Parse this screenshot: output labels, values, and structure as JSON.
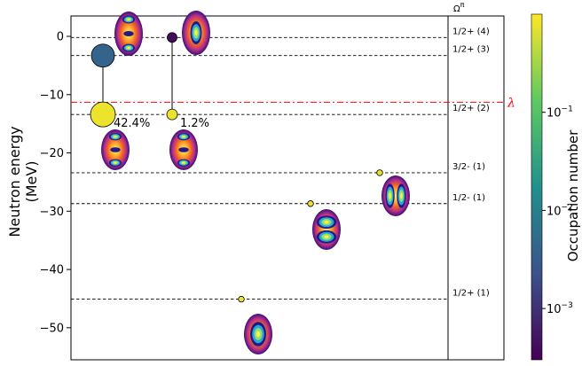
{
  "chart_data": {
    "type": "scatter",
    "ylabel_lines": [
      "Neutron energy",
      "(MeV)"
    ],
    "ylim": [
      -55.5,
      3.5
    ],
    "y_ticks": [
      0,
      -10,
      -20,
      -30,
      -40,
      -50
    ],
    "x_ticks_shown": false,
    "levels": [
      {
        "label": "1/2+ (4)",
        "energy": -0.2
      },
      {
        "label": "1/2+ (3)",
        "energy": -3.3
      },
      {
        "label": "1/2+ (2)",
        "energy": -13.4
      },
      {
        "label": "3/2- (1)",
        "energy": -23.4
      },
      {
        "label": "1/2- (1)",
        "energy": -28.7
      },
      {
        "label": "1/2+ (1)",
        "energy": -45.1
      }
    ],
    "right_header": "Ω",
    "right_header_sup": "π",
    "fermi_level": {
      "label": "λ",
      "energy": -11.3,
      "color": "#ff0000"
    },
    "points": [
      {
        "col": 1,
        "energy": -3.3,
        "occupation": 0.004
      },
      {
        "col": 1,
        "energy": -13.4,
        "occupation": 0.8
      },
      {
        "col": 2,
        "energy": -0.2,
        "occupation": 0.0004
      },
      {
        "col": 2,
        "energy": -13.4,
        "occupation": 0.8
      },
      {
        "col": 3,
        "energy": -45.1,
        "occupation": 0.8
      },
      {
        "col": 4,
        "energy": -28.7,
        "occupation": 0.8
      },
      {
        "col": 5,
        "energy": -23.4,
        "occupation": 0.8
      }
    ],
    "transitions": [
      {
        "col": 1,
        "from": -3.3,
        "to": -13.4,
        "label": "42.4%"
      },
      {
        "col": 2,
        "from": -0.2,
        "to": -13.4,
        "label": "1.2%"
      }
    ],
    "colorbar": {
      "label": "Occupation number",
      "scale": "log",
      "range": [
        0.0003,
        1.0
      ],
      "ticks": [
        {
          "value": 0.1,
          "base": "10",
          "exp": "−1"
        },
        {
          "value": 0.01,
          "base": "10",
          "exp": "−2"
        },
        {
          "value": 0.001,
          "base": "10",
          "exp": "−3"
        }
      ]
    }
  }
}
